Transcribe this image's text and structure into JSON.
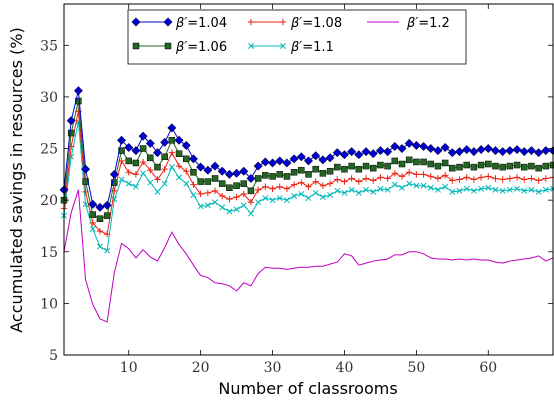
{
  "chart_data": {
    "type": "line",
    "xlabel": "Number of classrooms",
    "ylabel": "Accumulated savings in resources (%)",
    "xlim": [
      1,
      69
    ],
    "ylim": [
      5,
      39
    ],
    "xticks": [
      10,
      20,
      30,
      40,
      50,
      60
    ],
    "yticks": [
      5,
      10,
      15,
      20,
      25,
      30,
      35
    ],
    "grid": false,
    "legend_position": "top-center",
    "x": [
      1,
      2,
      3,
      4,
      5,
      6,
      7,
      8,
      9,
      10,
      11,
      12,
      13,
      14,
      15,
      16,
      17,
      18,
      19,
      20,
      21,
      22,
      23,
      24,
      25,
      26,
      27,
      28,
      29,
      30,
      31,
      32,
      33,
      34,
      35,
      36,
      37,
      38,
      39,
      40,
      41,
      42,
      43,
      44,
      45,
      46,
      47,
      48,
      49,
      50,
      51,
      52,
      53,
      54,
      55,
      56,
      57,
      58,
      59,
      60,
      61,
      62,
      63,
      64,
      65,
      66,
      67,
      68,
      69
    ],
    "series": [
      {
        "name": "β′=1.04",
        "legend_prefix": "β′",
        "legend_value": "=1.04",
        "color": "#0000cc",
        "marker": "diamond",
        "values": [
          21.0,
          27.7,
          30.6,
          23.0,
          19.6,
          19.3,
          19.5,
          22.5,
          25.8,
          25.1,
          24.8,
          26.2,
          25.5,
          24.6,
          25.6,
          27.0,
          25.8,
          25.3,
          24.0,
          23.2,
          22.9,
          23.3,
          22.8,
          22.5,
          22.6,
          22.8,
          22.1,
          23.3,
          23.7,
          23.6,
          23.8,
          23.6,
          24.0,
          24.2,
          23.8,
          24.3,
          23.9,
          24.1,
          24.6,
          24.4,
          24.7,
          24.4,
          24.7,
          24.5,
          24.8,
          24.7,
          25.2,
          25.0,
          25.5,
          25.3,
          25.2,
          25.0,
          24.8,
          25.1,
          24.6,
          24.7,
          24.9,
          24.7,
          24.9,
          25.0,
          24.8,
          24.7,
          24.8,
          24.9,
          24.7,
          24.8,
          24.6,
          24.8,
          24.8
        ]
      },
      {
        "name": "β′=1.06",
        "legend_prefix": "β′",
        "legend_value": "=1.06",
        "color": "#226622",
        "marker": "square",
        "values": [
          20.0,
          26.5,
          29.6,
          21.8,
          18.6,
          18.2,
          18.5,
          21.7,
          24.8,
          23.8,
          23.6,
          25.0,
          24.1,
          23.2,
          24.2,
          25.8,
          24.5,
          24.0,
          22.7,
          21.8,
          21.8,
          22.1,
          21.6,
          21.2,
          21.4,
          21.6,
          20.9,
          22.1,
          22.4,
          22.3,
          22.5,
          22.3,
          22.7,
          22.9,
          22.5,
          23.0,
          22.6,
          22.8,
          23.2,
          23.0,
          23.3,
          23.0,
          23.3,
          23.1,
          23.4,
          23.3,
          23.8,
          23.5,
          23.9,
          23.7,
          23.7,
          23.5,
          23.3,
          23.6,
          23.1,
          23.2,
          23.4,
          23.2,
          23.4,
          23.5,
          23.3,
          23.2,
          23.3,
          23.4,
          23.2,
          23.3,
          23.1,
          23.3,
          23.4
        ]
      },
      {
        "name": "β′=1.08",
        "legend_prefix": "β′",
        "legend_value": "=1.08",
        "color": "#ee2211",
        "marker": "plus",
        "values": [
          19.2,
          25.2,
          28.6,
          20.8,
          17.8,
          17.0,
          16.7,
          20.9,
          23.8,
          22.7,
          22.5,
          23.7,
          22.9,
          22.0,
          23.0,
          24.6,
          23.3,
          22.8,
          21.5,
          20.6,
          20.7,
          20.9,
          20.4,
          20.1,
          20.3,
          20.6,
          19.8,
          21.0,
          21.3,
          21.1,
          21.3,
          21.1,
          21.5,
          21.7,
          21.3,
          21.8,
          21.4,
          21.6,
          22.0,
          21.8,
          22.1,
          21.8,
          22.1,
          21.9,
          22.2,
          22.1,
          22.6,
          22.3,
          22.7,
          22.5,
          22.5,
          22.3,
          22.1,
          22.4,
          21.9,
          22.0,
          22.2,
          22.0,
          22.2,
          22.3,
          22.1,
          22.0,
          22.1,
          22.2,
          22.0,
          22.1,
          21.9,
          22.1,
          22.2
        ]
      },
      {
        "name": "β′=1.1",
        "legend_prefix": "β′",
        "legend_value": "=1.1",
        "color": "#00b8b8",
        "marker": "x",
        "values": [
          18.5,
          24.2,
          27.6,
          19.6,
          17.2,
          15.5,
          15.1,
          20.1,
          22.0,
          21.6,
          21.3,
          22.6,
          21.7,
          20.8,
          21.6,
          23.2,
          22.2,
          21.6,
          20.5,
          19.4,
          19.5,
          19.8,
          19.3,
          18.9,
          19.1,
          19.5,
          18.7,
          19.8,
          20.2,
          20.0,
          20.2,
          20.0,
          20.4,
          20.6,
          20.2,
          20.7,
          20.3,
          20.5,
          20.9,
          20.7,
          21.0,
          20.7,
          21.0,
          20.8,
          21.1,
          21.0,
          21.5,
          21.2,
          21.6,
          21.4,
          21.4,
          21.2,
          21.0,
          21.3,
          20.8,
          20.9,
          21.1,
          20.9,
          21.1,
          21.2,
          21.0,
          20.9,
          21.0,
          21.1,
          20.9,
          21.0,
          20.8,
          21.0,
          21.1
        ]
      },
      {
        "name": "β′=1.2",
        "legend_prefix": "β′",
        "legend_value": "=1.2",
        "color": "#c000c0",
        "marker": "line",
        "values": [
          15.0,
          18.8,
          21.0,
          12.3,
          9.9,
          8.5,
          8.2,
          13.0,
          15.8,
          15.3,
          14.4,
          15.2,
          14.5,
          14.1,
          15.4,
          16.9,
          15.7,
          14.8,
          13.7,
          12.7,
          12.5,
          12.0,
          11.9,
          11.7,
          11.2,
          12.0,
          11.7,
          12.9,
          13.5,
          13.4,
          13.4,
          13.3,
          13.4,
          13.5,
          13.5,
          13.6,
          13.6,
          13.8,
          14.0,
          14.8,
          14.6,
          13.7,
          13.9,
          14.1,
          14.2,
          14.3,
          14.7,
          14.7,
          15.0,
          15.0,
          14.8,
          14.4,
          14.3,
          14.3,
          14.2,
          14.3,
          14.2,
          14.3,
          14.2,
          14.2,
          14.0,
          13.9,
          14.1,
          14.2,
          14.3,
          14.4,
          14.6,
          14.1,
          14.4
        ]
      }
    ]
  }
}
